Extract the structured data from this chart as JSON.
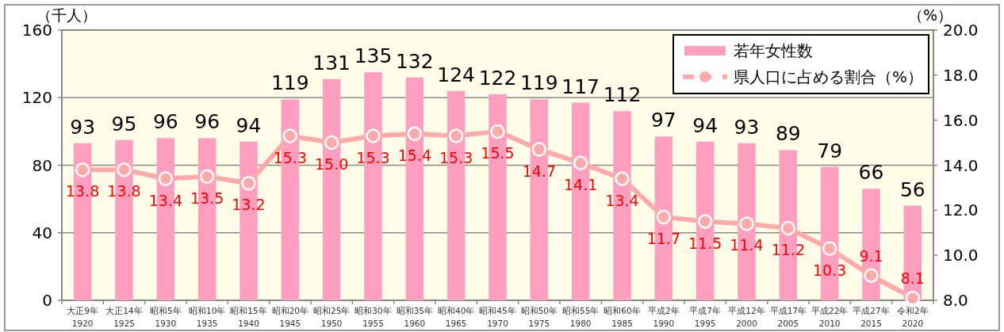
{
  "chart_data": {
    "type": "bar",
    "ylabel": "（千人）",
    "y2label": "（%）",
    "categories": [
      "大正9年\n1920",
      "大正14年\n1925",
      "昭和5年\n1930",
      "昭和10年\n1935",
      "昭和15年\n1940",
      "昭和20年\n1945",
      "昭和25年\n1950",
      "昭和30年\n1955",
      "昭和35年\n1960",
      "昭和40年\n1965",
      "昭和45年\n1970",
      "昭和50年\n1975",
      "昭和55年\n1980",
      "昭和60年\n1985",
      "平成2年\n1990",
      "平成7年\n1995",
      "平成12年\n2000",
      "平成17年\n2005",
      "平成22年\n2010",
      "平成27年\n2015",
      "令和2年\n2020"
    ],
    "series": [
      {
        "name": "若年女性数",
        "color": "#ff9fc0",
        "values": [
          93,
          95,
          96,
          96,
          94,
          119,
          131,
          135,
          132,
          124,
          122,
          119,
          117,
          112,
          97,
          94,
          93,
          89,
          79,
          66,
          56
        ]
      },
      {
        "name": "県人口に占める割合（%）",
        "type": "line",
        "axis": "y2",
        "color": "#ffaaaa",
        "marker": "circle",
        "values": [
          13.8,
          13.8,
          13.4,
          13.5,
          13.2,
          15.3,
          15.0,
          15.3,
          15.4,
          15.3,
          15.5,
          14.7,
          14.1,
          13.4,
          11.7,
          11.5,
          11.4,
          11.2,
          10.3,
          9.1,
          8.1
        ],
        "value_labels": [
          "13.8",
          "13.8",
          "13.4",
          "13.5",
          "13.2",
          "15.3",
          "15.0",
          "15.3",
          "15.4",
          "15.3",
          "15.5",
          "14.7",
          "14.1",
          "13.4",
          "11.7",
          "11.5",
          "11.4",
          "11.2",
          "10.3",
          "9.1",
          "8.1"
        ]
      }
    ],
    "ylim": [
      0,
      160
    ],
    "yticks": [
      0,
      40,
      80,
      120,
      160
    ],
    "y2lim": [
      8.0,
      20.0
    ],
    "y2ticks": [
      {
        "value": 8,
        "label": "8.0"
      },
      {
        "value": 10,
        "label": "10.0"
      },
      {
        "value": 12,
        "label": "12.0"
      },
      {
        "value": 14,
        "label": "14.0"
      },
      {
        "value": 16,
        "label": "16.0"
      },
      {
        "value": 18,
        "label": "18.0"
      },
      {
        "value": 20,
        "label": "20.0"
      }
    ],
    "grid": "y",
    "legend": "top right",
    "data_labels": true
  }
}
